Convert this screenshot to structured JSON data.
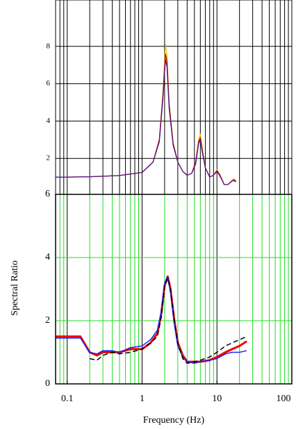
{
  "chart_data": [
    {
      "type": "line",
      "log_x": true,
      "xlim": [
        0.07,
        100
      ],
      "ylim": [
        0,
        10
      ],
      "yticks": [
        2,
        4,
        6,
        8
      ],
      "grid": true,
      "grid_color": "#000000",
      "x": [
        0.07,
        0.1,
        0.2,
        0.5,
        1,
        1.4,
        1.7,
        1.9,
        2.05,
        2.15,
        2.3,
        2.6,
        3,
        3.5,
        4,
        4.6,
        5.2,
        5.7,
        6,
        6.4,
        7,
        8,
        9,
        10,
        11,
        12.5,
        14,
        16,
        17,
        18
      ],
      "series": [
        {
          "color": "#e8c800",
          "values": [
            1,
            1,
            1.02,
            1.08,
            1.25,
            1.8,
            3,
            5.5,
            8.1,
            7.5,
            5,
            2.8,
            1.8,
            1.3,
            1.1,
            1.2,
            1.8,
            3.0,
            3.3,
            2.5,
            1.5,
            1.0,
            1.1,
            1.4,
            1.1,
            0.6,
            0.6,
            0.85,
            0.9,
            0.8
          ]
        },
        {
          "color": "#cc0000",
          "values": [
            1,
            1,
            1.02,
            1.08,
            1.25,
            1.8,
            3,
            5.4,
            7.6,
            7.2,
            4.9,
            2.8,
            1.8,
            1.3,
            1.1,
            1.2,
            1.8,
            2.9,
            3.1,
            2.4,
            1.5,
            1.0,
            1.1,
            1.35,
            1.1,
            0.6,
            0.6,
            0.8,
            0.85,
            0.75
          ]
        },
        {
          "color": "#551a8b",
          "values": [
            1,
            1,
            1.02,
            1.08,
            1.25,
            1.8,
            2.9,
            5.2,
            7.3,
            6.9,
            4.7,
            2.7,
            1.8,
            1.3,
            1.1,
            1.2,
            1.7,
            2.8,
            3.0,
            2.3,
            1.5,
            1.0,
            1.1,
            1.3,
            1.05,
            0.6,
            0.6,
            0.8,
            0.8,
            0.75
          ]
        }
      ]
    },
    {
      "type": "line",
      "log_x": true,
      "xlim": [
        0.07,
        100
      ],
      "ylim": [
        0,
        6
      ],
      "xticks": [
        0.1,
        1,
        10,
        100
      ],
      "yticks": [
        0,
        2,
        4,
        6
      ],
      "grid": true,
      "grid_color": "#22dd22",
      "major_grid_color": "#000000",
      "xlabel": "Frequency (Hz)",
      "ylabel": "Spectral Ratio",
      "x": [
        0.07,
        0.1,
        0.15,
        0.2,
        0.25,
        0.3,
        0.4,
        0.5,
        0.7,
        1,
        1.3,
        1.6,
        1.8,
        2,
        2.2,
        2.4,
        2.7,
        3,
        3.5,
        4,
        5,
        6,
        8,
        10,
        13,
        16,
        20,
        25
      ],
      "series": [
        {
          "color": "#ee0000",
          "width": 3,
          "values": [
            1.5,
            1.5,
            1.5,
            1.0,
            0.9,
            1.0,
            1.0,
            1.0,
            1.1,
            1.1,
            1.3,
            1.6,
            2.2,
            3.1,
            3.4,
            3.0,
            2.0,
            1.3,
            0.9,
            0.7,
            0.7,
            0.7,
            0.75,
            0.85,
            1.0,
            1.1,
            1.2,
            1.35
          ]
        },
        {
          "color": "#2222ff",
          "width": 1.5,
          "values": [
            1.45,
            1.45,
            1.45,
            1.0,
            0.95,
            1.05,
            1.05,
            1.0,
            1.15,
            1.2,
            1.4,
            1.7,
            2.3,
            3.2,
            3.4,
            2.9,
            1.9,
            1.2,
            0.85,
            0.7,
            0.65,
            0.7,
            0.75,
            0.8,
            0.95,
            1.0,
            1.0,
            1.05
          ]
        },
        {
          "color": "#000000",
          "width": 1.5,
          "dashed": true,
          "values": [
            null,
            null,
            null,
            0.8,
            0.75,
            0.9,
            1.0,
            0.95,
            1.0,
            1.1,
            1.3,
            1.5,
            2.1,
            3.1,
            3.35,
            3.0,
            2.0,
            1.3,
            0.8,
            0.65,
            0.7,
            0.75,
            0.85,
            1.0,
            1.2,
            1.3,
            1.4,
            1.5
          ]
        }
      ]
    }
  ]
}
